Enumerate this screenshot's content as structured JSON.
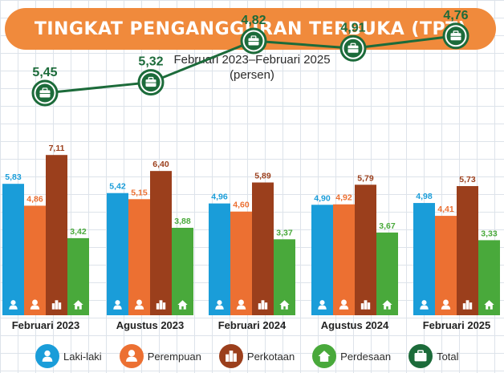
{
  "header": {
    "title": "TINGKAT PENGANGGURAN TERBUKA (TPT)",
    "subtitle_line1": "Februari 2023–Februari 2025",
    "subtitle_line2": "(persen)"
  },
  "colors": {
    "banner": "#f08a3c",
    "laki_laki": "#1a9dd9",
    "perempuan": "#ec7032",
    "perkotaan": "#9b3f1c",
    "perdesaan": "#49a93b",
    "total": "#1c6b3a"
  },
  "chart_data": {
    "type": "bar",
    "title": "TINGKAT PENGANGGURAN TERBUKA (TPT)",
    "subtitle": "Februari 2023–Februari 2025 (persen)",
    "categories": [
      "Februari 2023",
      "Agustus 2023",
      "Februari 2024",
      "Agustus 2024",
      "Februari 2025"
    ],
    "series": [
      {
        "name": "Laki-laki",
        "icon": "person-icon",
        "values": [
          5.83,
          5.42,
          4.96,
          4.9,
          4.98
        ]
      },
      {
        "name": "Perempuan",
        "icon": "woman-icon",
        "values": [
          4.86,
          5.15,
          4.6,
          4.92,
          4.41
        ]
      },
      {
        "name": "Perkotaan",
        "icon": "city-icon",
        "values": [
          7.11,
          6.4,
          5.89,
          5.79,
          5.73
        ]
      },
      {
        "name": "Perdesaan",
        "icon": "house-icon",
        "values": [
          3.42,
          3.88,
          3.37,
          3.67,
          3.33
        ]
      }
    ],
    "total": {
      "name": "Total",
      "type": "line",
      "icon": "briefcase-icon",
      "values": [
        5.45,
        5.32,
        4.82,
        4.91,
        4.76
      ]
    },
    "value_format": "decimal-comma",
    "grid": true,
    "legend_position": "bottom"
  }
}
